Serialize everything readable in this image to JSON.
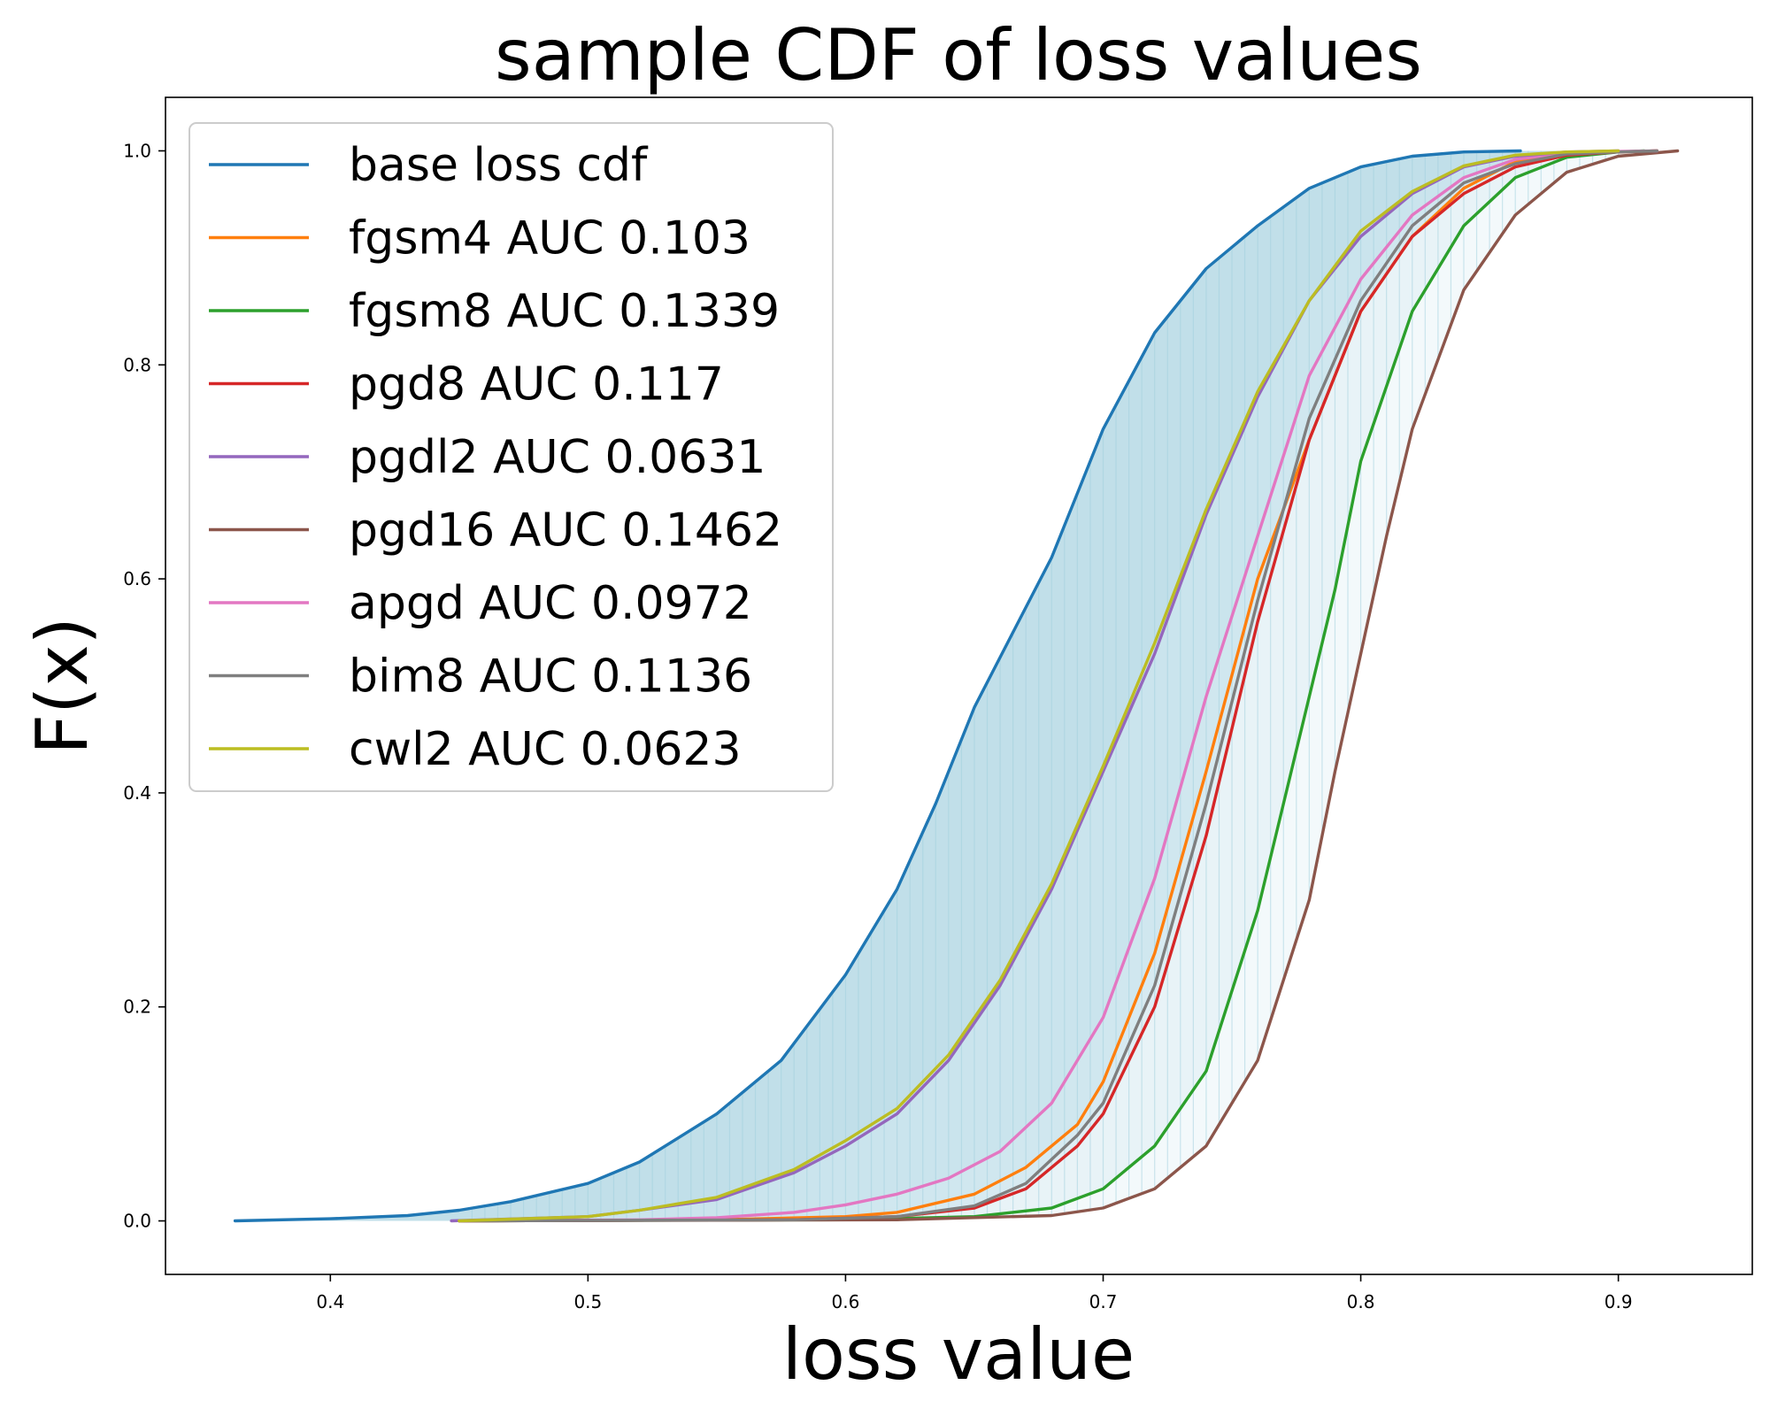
{
  "chart_data": {
    "type": "line",
    "title": "sample CDF of loss values",
    "xlabel": "loss value",
    "ylabel": "F(x)",
    "xlim": [
      0.336,
      0.952
    ],
    "ylim": [
      -0.05,
      1.05
    ],
    "xticks": [
      0.4,
      0.5,
      0.6,
      0.7,
      0.8,
      0.9
    ],
    "xtick_labels": [
      "0.4",
      "0.5",
      "0.6",
      "0.7",
      "0.8",
      "0.9"
    ],
    "yticks": [
      0.0,
      0.2,
      0.4,
      0.6,
      0.8,
      1.0
    ],
    "ytick_labels": [
      "0.0",
      "0.2",
      "0.4",
      "0.6",
      "0.8",
      "1.0"
    ],
    "grid": false,
    "legend_position": "upper-left",
    "series": [
      {
        "name": "base loss cdf",
        "color": "#1f77b4",
        "x": [
          0.363,
          0.4,
          0.43,
          0.45,
          0.47,
          0.5,
          0.52,
          0.55,
          0.575,
          0.6,
          0.62,
          0.635,
          0.65,
          0.665,
          0.68,
          0.7,
          0.72,
          0.74,
          0.76,
          0.78,
          0.8,
          0.82,
          0.84,
          0.862
        ],
        "y": [
          0.0,
          0.002,
          0.005,
          0.01,
          0.018,
          0.035,
          0.055,
          0.1,
          0.15,
          0.23,
          0.31,
          0.39,
          0.48,
          0.55,
          0.62,
          0.74,
          0.83,
          0.89,
          0.93,
          0.965,
          0.985,
          0.995,
          0.999,
          1.0
        ]
      },
      {
        "name": "fgsm4 AUC 0.103",
        "color": "#ff7f0e",
        "x": [
          0.45,
          0.55,
          0.6,
          0.62,
          0.65,
          0.67,
          0.69,
          0.7,
          0.72,
          0.74,
          0.76,
          0.78,
          0.8,
          0.82,
          0.84,
          0.86,
          0.88,
          0.9,
          0.915
        ],
        "y": [
          0.0,
          0.001,
          0.004,
          0.008,
          0.025,
          0.05,
          0.09,
          0.13,
          0.25,
          0.42,
          0.6,
          0.73,
          0.85,
          0.92,
          0.965,
          0.99,
          0.997,
          0.999,
          1.0
        ]
      },
      {
        "name": "fgsm8 AUC 0.1339",
        "color": "#2ca02c",
        "x": [
          0.45,
          0.6,
          0.65,
          0.68,
          0.7,
          0.72,
          0.74,
          0.76,
          0.77,
          0.78,
          0.79,
          0.8,
          0.82,
          0.84,
          0.86,
          0.88,
          0.9,
          0.91
        ],
        "y": [
          0.0,
          0.001,
          0.004,
          0.012,
          0.03,
          0.07,
          0.14,
          0.29,
          0.39,
          0.49,
          0.59,
          0.71,
          0.85,
          0.93,
          0.975,
          0.994,
          0.999,
          1.0
        ]
      },
      {
        "name": "pgd8 AUC 0.117",
        "color": "#d62728",
        "x": [
          0.45,
          0.58,
          0.62,
          0.65,
          0.67,
          0.69,
          0.7,
          0.72,
          0.74,
          0.76,
          0.78,
          0.8,
          0.82,
          0.84,
          0.86,
          0.88,
          0.9,
          0.915
        ],
        "y": [
          0.0,
          0.001,
          0.004,
          0.012,
          0.03,
          0.07,
          0.1,
          0.2,
          0.36,
          0.56,
          0.73,
          0.85,
          0.92,
          0.96,
          0.985,
          0.996,
          0.999,
          1.0
        ]
      },
      {
        "name": "pgdl2 AUC 0.0631",
        "color": "#9467bd",
        "x": [
          0.447,
          0.5,
          0.52,
          0.55,
          0.58,
          0.6,
          0.62,
          0.64,
          0.66,
          0.68,
          0.7,
          0.72,
          0.74,
          0.76,
          0.78,
          0.8,
          0.82,
          0.84,
          0.86,
          0.88,
          0.9
        ],
        "y": [
          0.0,
          0.004,
          0.01,
          0.02,
          0.045,
          0.07,
          0.1,
          0.15,
          0.22,
          0.31,
          0.42,
          0.53,
          0.66,
          0.77,
          0.86,
          0.92,
          0.96,
          0.985,
          0.995,
          0.999,
          1.0
        ]
      },
      {
        "name": "pgd16 AUC 0.1462",
        "color": "#8c564b",
        "x": [
          0.45,
          0.62,
          0.68,
          0.7,
          0.72,
          0.74,
          0.76,
          0.78,
          0.79,
          0.8,
          0.81,
          0.82,
          0.84,
          0.86,
          0.88,
          0.9,
          0.923
        ],
        "y": [
          0.0,
          0.001,
          0.005,
          0.012,
          0.03,
          0.07,
          0.15,
          0.3,
          0.42,
          0.53,
          0.64,
          0.74,
          0.87,
          0.94,
          0.98,
          0.995,
          1.0
        ]
      },
      {
        "name": "apgd AUC 0.0972",
        "color": "#e377c2",
        "x": [
          0.45,
          0.52,
          0.55,
          0.58,
          0.6,
          0.62,
          0.64,
          0.66,
          0.68,
          0.7,
          0.72,
          0.74,
          0.76,
          0.78,
          0.8,
          0.82,
          0.84,
          0.86,
          0.88,
          0.9,
          0.915
        ],
        "y": [
          0.0,
          0.001,
          0.003,
          0.008,
          0.015,
          0.025,
          0.04,
          0.065,
          0.11,
          0.19,
          0.32,
          0.49,
          0.64,
          0.79,
          0.88,
          0.94,
          0.975,
          0.992,
          0.998,
          0.9995,
          1.0
        ]
      },
      {
        "name": "bim8 AUC 0.1136",
        "color": "#7f7f7f",
        "x": [
          0.45,
          0.58,
          0.62,
          0.65,
          0.67,
          0.69,
          0.7,
          0.72,
          0.74,
          0.76,
          0.78,
          0.8,
          0.82,
          0.84,
          0.86,
          0.88,
          0.9,
          0.915
        ],
        "y": [
          0.0,
          0.001,
          0.004,
          0.014,
          0.035,
          0.08,
          0.11,
          0.22,
          0.39,
          0.58,
          0.75,
          0.86,
          0.93,
          0.97,
          0.988,
          0.997,
          0.999,
          1.0
        ]
      },
      {
        "name": "cwl2 AUC 0.0623",
        "color": "#bcbd22",
        "x": [
          0.45,
          0.5,
          0.52,
          0.55,
          0.58,
          0.6,
          0.62,
          0.64,
          0.66,
          0.68,
          0.7,
          0.72,
          0.74,
          0.76,
          0.78,
          0.8,
          0.82,
          0.84,
          0.86,
          0.88,
          0.9
        ],
        "y": [
          0.0,
          0.004,
          0.01,
          0.022,
          0.048,
          0.075,
          0.105,
          0.155,
          0.225,
          0.315,
          0.425,
          0.54,
          0.665,
          0.775,
          0.86,
          0.925,
          0.962,
          0.986,
          0.996,
          0.999,
          1.0
        ]
      }
    ]
  }
}
